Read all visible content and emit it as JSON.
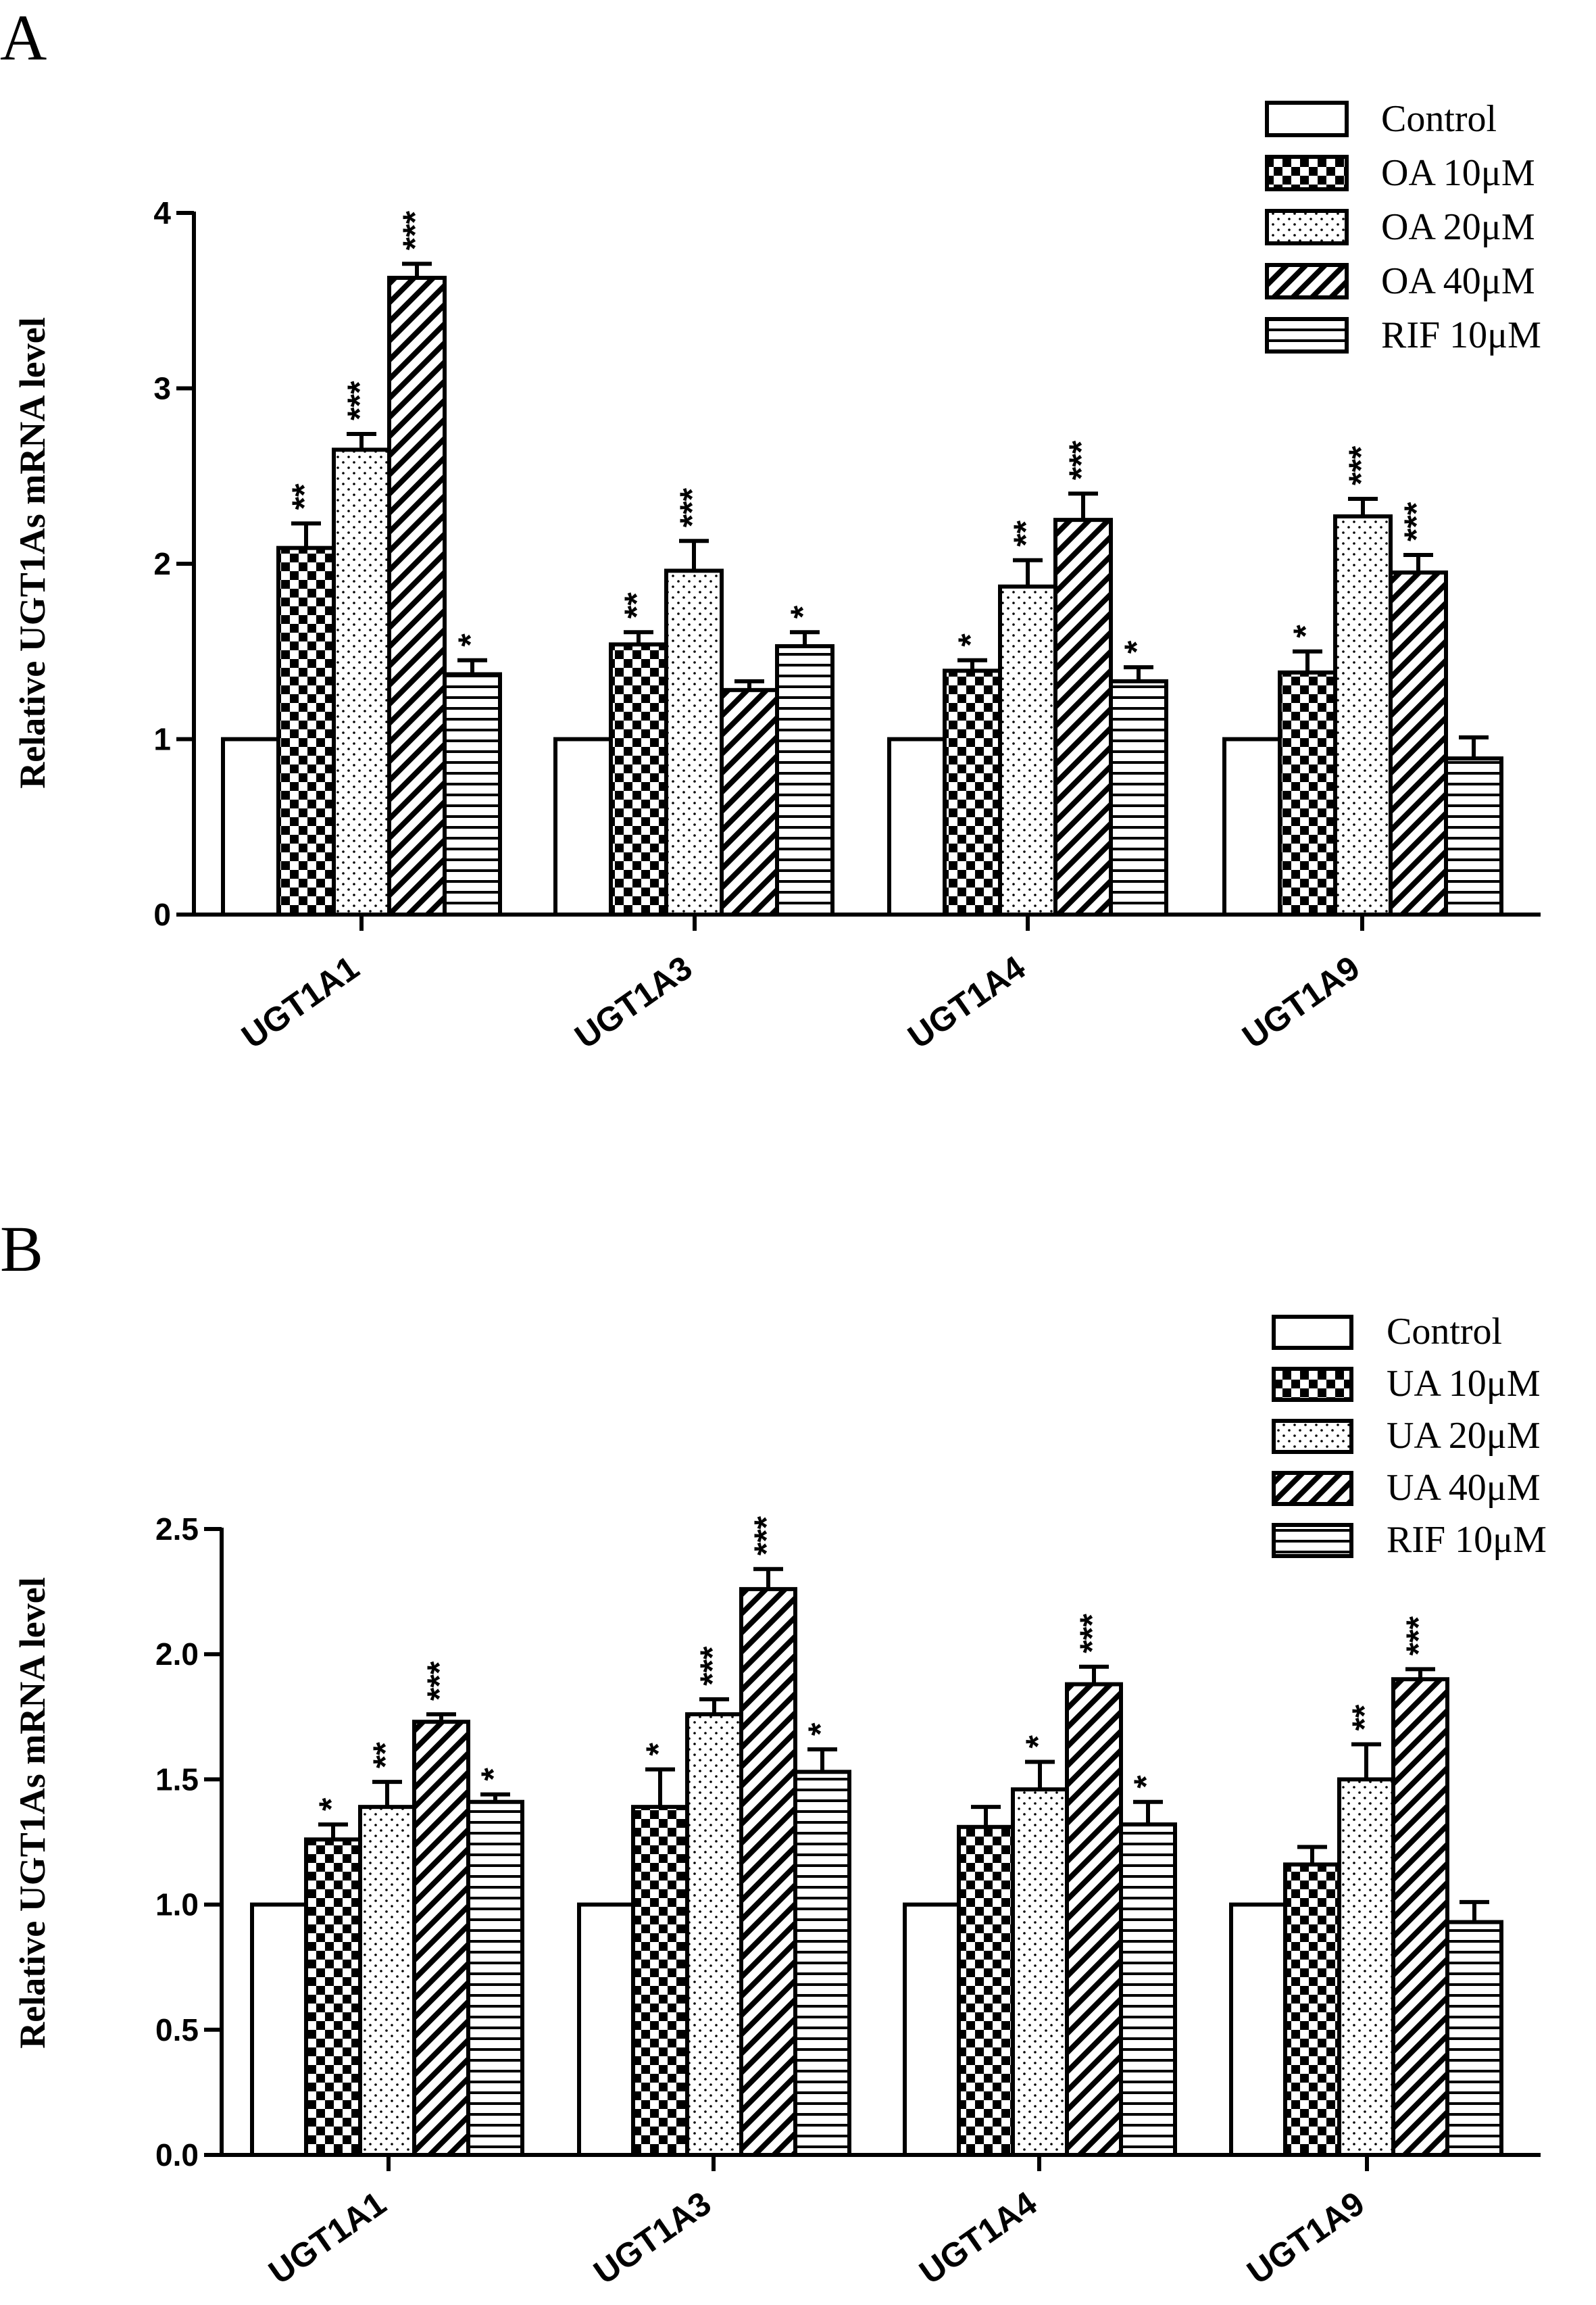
{
  "chart_data": [
    {
      "panel_label": "A",
      "type": "bar",
      "ylabel": "Relative UGT1As mRNA level",
      "ylim": [
        0,
        4
      ],
      "yticks": [
        0,
        1,
        2,
        3,
        4
      ],
      "ytick_labels": [
        "0",
        "1",
        "2",
        "3",
        "4"
      ],
      "categories": [
        "UGT1A1",
        "UGT1A3",
        "UGT1A4",
        "UGT1A9"
      ],
      "legend_position": "top-right",
      "series": [
        {
          "name": "Control",
          "pattern": "plain",
          "values": [
            1.0,
            1.0,
            1.0,
            1.0
          ],
          "errors": [
            0,
            0,
            0,
            0
          ],
          "sig": [
            "",
            "",
            "",
            ""
          ]
        },
        {
          "name": "OA 10μM",
          "pattern": "checker",
          "values": [
            2.09,
            1.54,
            1.39,
            1.38
          ],
          "errors": [
            0.14,
            0.07,
            0.06,
            0.12
          ],
          "sig": [
            "**",
            "**",
            "*",
            "*"
          ]
        },
        {
          "name": "OA 20μM",
          "pattern": "dots",
          "values": [
            2.65,
            1.96,
            1.87,
            2.27
          ],
          "errors": [
            0.09,
            0.17,
            0.15,
            0.1
          ],
          "sig": [
            "***",
            "***",
            "**",
            "***"
          ]
        },
        {
          "name": "OA 40μM",
          "pattern": "diagonal",
          "values": [
            3.63,
            1.28,
            2.25,
            1.95
          ],
          "errors": [
            0.08,
            0.05,
            0.15,
            0.1
          ],
          "sig": [
            "***",
            "",
            "***",
            "***"
          ]
        },
        {
          "name": "RIF 10μM",
          "pattern": "hlines",
          "values": [
            1.37,
            1.53,
            1.33,
            0.89
          ],
          "errors": [
            0.08,
            0.08,
            0.08,
            0.12
          ],
          "sig": [
            "*",
            "*",
            "*",
            ""
          ]
        }
      ]
    },
    {
      "panel_label": "B",
      "type": "bar",
      "ylabel": "Relative UGT1As mRNA level",
      "ylim": [
        0,
        2.5
      ],
      "yticks": [
        0,
        0.5,
        1,
        1.5,
        2,
        2.5
      ],
      "ytick_labels": [
        "0.0",
        "0.5",
        "1.0",
        "1.5",
        "2.0",
        "2.5"
      ],
      "categories": [
        "UGT1A1",
        "UGT1A3",
        "UGT1A4",
        "UGT1A9"
      ],
      "legend_position": "top-right",
      "series": [
        {
          "name": "Control",
          "pattern": "plain",
          "values": [
            1.0,
            1.0,
            1.0,
            1.0
          ],
          "errors": [
            0,
            0,
            0,
            0
          ],
          "sig": [
            "",
            "",
            "",
            ""
          ]
        },
        {
          "name": "UA 10μM",
          "pattern": "checker",
          "values": [
            1.26,
            1.39,
            1.31,
            1.16
          ],
          "errors": [
            0.06,
            0.15,
            0.08,
            0.07
          ],
          "sig": [
            "*",
            "*",
            "",
            ""
          ]
        },
        {
          "name": "UA 20μM",
          "pattern": "dots",
          "values": [
            1.39,
            1.76,
            1.46,
            1.5
          ],
          "errors": [
            0.1,
            0.06,
            0.11,
            0.14
          ],
          "sig": [
            "**",
            "***",
            "*",
            "**"
          ]
        },
        {
          "name": "UA 40μM",
          "pattern": "diagonal",
          "values": [
            1.73,
            2.26,
            1.88,
            1.9
          ],
          "errors": [
            0.03,
            0.08,
            0.07,
            0.04
          ],
          "sig": [
            "***",
            "***",
            "***",
            "***"
          ]
        },
        {
          "name": "RIF 10μM",
          "pattern": "hlines",
          "values": [
            1.41,
            1.53,
            1.32,
            0.93
          ],
          "errors": [
            0.03,
            0.09,
            0.09,
            0.08
          ],
          "sig": [
            "*",
            "*",
            "*",
            ""
          ]
        }
      ]
    }
  ]
}
